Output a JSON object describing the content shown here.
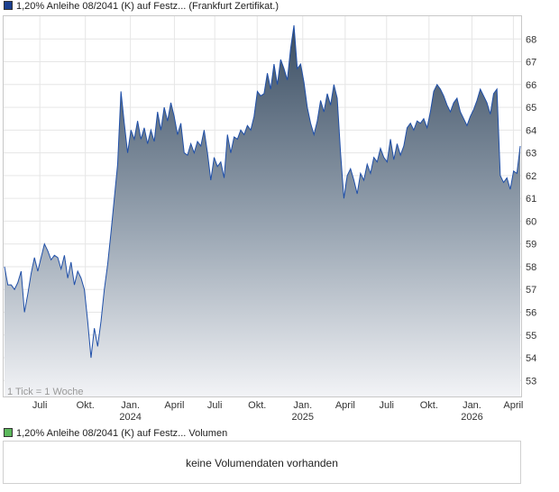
{
  "legend": {
    "price_label": "1,20% Anleihe 08/2041 (K) auf Festz... (Frankfurt Zertifikat.)",
    "volume_label": "1,20% Anleihe 08/2041 (K) auf Festz... Volumen"
  },
  "volume_panel": {
    "message": "keine Volumendaten vorhanden"
  },
  "chart_data": {
    "type": "area",
    "annotation": "1 Tick = 1 Woche",
    "ylim": [
      52.3,
      69.0
    ],
    "y_ticks": [
      53,
      54,
      55,
      56,
      57,
      58,
      59,
      60,
      61,
      62,
      63,
      64,
      65,
      66,
      67,
      68
    ],
    "x_ticks": [
      {
        "label": "Juli",
        "year": "",
        "pos": 0.07
      },
      {
        "label": "Okt.",
        "year": "",
        "pos": 0.158
      },
      {
        "label": "Jan.",
        "year": "2024",
        "pos": 0.245
      },
      {
        "label": "April",
        "year": "",
        "pos": 0.33
      },
      {
        "label": "Juli",
        "year": "",
        "pos": 0.408
      },
      {
        "label": "Okt.",
        "year": "",
        "pos": 0.49
      },
      {
        "label": "Jan.",
        "year": "2025",
        "pos": 0.578
      },
      {
        "label": "April",
        "year": "",
        "pos": 0.66
      },
      {
        "label": "Juli",
        "year": "",
        "pos": 0.74
      },
      {
        "label": "Okt.",
        "year": "",
        "pos": 0.822
      },
      {
        "label": "Jan.",
        "year": "2026",
        "pos": 0.905
      },
      {
        "label": "April",
        "year": "",
        "pos": 0.985
      }
    ],
    "series": [
      {
        "color": "#1f4fa8",
        "values": [
          58.0,
          57.2,
          57.2,
          57.0,
          57.3,
          57.8,
          56.0,
          56.8,
          57.7,
          58.4,
          57.8,
          58.4,
          59.0,
          58.7,
          58.3,
          58.5,
          58.4,
          57.9,
          58.5,
          57.5,
          58.2,
          57.2,
          57.8,
          57.5,
          57.0,
          55.6,
          54.0,
          55.3,
          54.5,
          55.6,
          57.0,
          58.1,
          59.5,
          61.0,
          62.5,
          65.7,
          64.3,
          63.0,
          64.0,
          63.6,
          64.4,
          63.6,
          64.1,
          63.4,
          64.0,
          63.5,
          64.8,
          64.0,
          65.0,
          64.4,
          65.2,
          64.6,
          63.8,
          64.3,
          63.0,
          62.9,
          63.4,
          63.0,
          63.5,
          63.3,
          64.0,
          63.0,
          61.8,
          62.8,
          62.4,
          62.6,
          61.9,
          63.8,
          63.0,
          63.7,
          63.6,
          64.0,
          63.8,
          64.2,
          64.0,
          64.6,
          65.7,
          65.5,
          65.6,
          66.5,
          65.8,
          66.9,
          66.0,
          67.1,
          66.7,
          66.2,
          67.6,
          68.6,
          66.7,
          66.9,
          66.1,
          65.0,
          64.3,
          63.8,
          64.4,
          65.3,
          64.8,
          65.6,
          65.1,
          66.0,
          65.4,
          63.0,
          61.0,
          62.0,
          62.3,
          61.8,
          61.2,
          62.1,
          61.8,
          62.5,
          62.1,
          62.8,
          62.6,
          63.2,
          62.8,
          62.6,
          63.6,
          62.7,
          63.4,
          62.9,
          63.3,
          64.1,
          64.3,
          64.0,
          64.4,
          64.3,
          64.5,
          64.1,
          64.8,
          65.7,
          66.0,
          65.8,
          65.5,
          65.1,
          64.8,
          65.2,
          65.4,
          64.8,
          64.5,
          64.2,
          64.6,
          64.9,
          65.3,
          65.8,
          65.5,
          65.2,
          64.7,
          65.6,
          65.8,
          62.0,
          61.7,
          61.9,
          61.4,
          62.2,
          62.1,
          63.3
        ]
      }
    ]
  }
}
